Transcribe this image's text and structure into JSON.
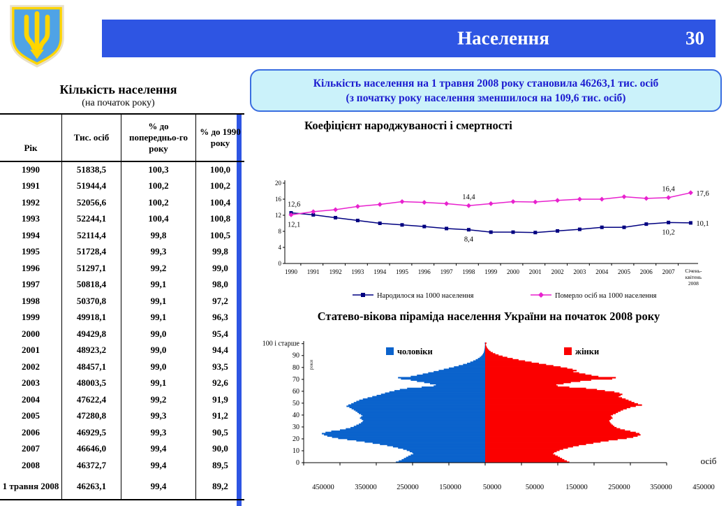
{
  "header": {
    "title": "Населення",
    "page_number": "30"
  },
  "info_box": {
    "line1": "Кількість населення на 1 травня 2008 року становила 46263,1 тис. осіб",
    "line2": "(з початку року населення зменшилося на 109,6 тис. осіб)"
  },
  "population_table": {
    "title": "Кількість населення",
    "subtitle": "(на початок року)",
    "columns": [
      "Рік",
      "Тис. осіб",
      "% до попередньо-го року",
      "% до 1990 року"
    ],
    "rows": [
      [
        "1990",
        "51838,5",
        "100,3",
        "100,0"
      ],
      [
        "1991",
        "51944,4",
        "100,2",
        "100,2"
      ],
      [
        "1992",
        "52056,6",
        "100,2",
        "100,4"
      ],
      [
        "1993",
        "52244,1",
        "100,4",
        "100,8"
      ],
      [
        "1994",
        "52114,4",
        "99,8",
        "100,5"
      ],
      [
        "1995",
        "51728,4",
        "99,3",
        "99,8"
      ],
      [
        "1996",
        "51297,1",
        "99,2",
        "99,0"
      ],
      [
        "1997",
        "50818,4",
        "99,1",
        "98,0"
      ],
      [
        "1998",
        "50370,8",
        "99,1",
        "97,2"
      ],
      [
        "1999",
        "49918,1",
        "99,1",
        "96,3"
      ],
      [
        "2000",
        "49429,8",
        "99,0",
        "95,4"
      ],
      [
        "2001",
        "48923,2",
        "99,0",
        "94,4"
      ],
      [
        "2002",
        "48457,1",
        "99,0",
        "93,5"
      ],
      [
        "2003",
        "48003,5",
        "99,1",
        "92,6"
      ],
      [
        "2004",
        "47622,4",
        "99,2",
        "91,9"
      ],
      [
        "2005",
        "47280,8",
        "99,3",
        "91,2"
      ],
      [
        "2006",
        "46929,5",
        "99,3",
        "90,5"
      ],
      [
        "2007",
        "46646,0",
        "99,4",
        "90,0"
      ],
      [
        "2008",
        "46372,7",
        "99,4",
        "89,5"
      ],
      [
        "1 травня 2008",
        "46263,1",
        "99,4",
        "89,2"
      ]
    ]
  },
  "chart_data": [
    {
      "type": "line",
      "title": "Коефіцієнт народжуваності і смертності",
      "categories": [
        "1990",
        "1991",
        "1992",
        "1993",
        "1994",
        "1995",
        "1996",
        "1997",
        "1998",
        "1999",
        "2000",
        "2001",
        "2002",
        "2003",
        "2004",
        "2005",
        "2006",
        "2007",
        "Січень-квітень 2008"
      ],
      "last_category_lines": [
        "Січень-",
        "квітень",
        "2008"
      ],
      "ylim": [
        0,
        20
      ],
      "yticks": [
        0,
        4,
        8,
        12,
        16,
        20
      ],
      "grid": false,
      "legend_position": "bottom",
      "series": [
        {
          "name": "Народилося на 1000 населення",
          "color": "#000080",
          "marker": "square",
          "values": [
            12.6,
            12.1,
            11.4,
            10.7,
            10.0,
            9.6,
            9.2,
            8.7,
            8.4,
            7.8,
            7.8,
            7.7,
            8.1,
            8.5,
            9.0,
            9.0,
            9.8,
            10.2,
            10.1
          ]
        },
        {
          "name": "Померло осіб на 1000 населення",
          "color": "#E821CE",
          "marker": "diamond",
          "values": [
            12.1,
            12.9,
            13.4,
            14.2,
            14.7,
            15.4,
            15.2,
            14.9,
            14.4,
            14.9,
            15.4,
            15.3,
            15.7,
            16.0,
            16.0,
            16.6,
            16.2,
            16.4,
            17.6
          ]
        }
      ],
      "annotations": [
        {
          "series": 0,
          "index": 0,
          "text": "12,6",
          "position": "above"
        },
        {
          "series": 1,
          "index": 0,
          "text": "12,1",
          "position": "below"
        },
        {
          "series": 1,
          "index": 8,
          "text": "14,4",
          "position": "above"
        },
        {
          "series": 0,
          "index": 8,
          "text": "8,4",
          "position": "below"
        },
        {
          "series": 1,
          "index": 17,
          "text": "16,4",
          "position": "above"
        },
        {
          "series": 0,
          "index": 17,
          "text": "10,2",
          "position": "below"
        },
        {
          "series": 1,
          "index": 18,
          "text": "17,6",
          "position": "right"
        },
        {
          "series": 0,
          "index": 18,
          "text": "10,1",
          "position": "right"
        }
      ]
    },
    {
      "type": "pyramid",
      "title": "Статево-вікова піраміда населення України на початок 2008 року",
      "unit_label": "осіб",
      "age_axis_label": "роки",
      "age_top_label": "100 і старше",
      "age_tick_step": 10,
      "x_tick_labels": [
        "450000",
        "350000",
        "250000",
        "150000",
        "50000",
        "50000",
        "150000",
        "250000",
        "350000",
        "450000"
      ],
      "xmax": 500000,
      "series": [
        {
          "name": "чоловіки",
          "color": "#0B63CC",
          "values": [
            246000,
            238000,
            230000,
            224000,
            218000,
            212000,
            205000,
            198000,
            201000,
            208000,
            216000,
            226000,
            240000,
            254000,
            270000,
            290000,
            310000,
            332000,
            355000,
            380000,
            405000,
            422000,
            435000,
            444000,
            450000,
            440000,
            424000,
            400000,
            384000,
            371000,
            362000,
            355000,
            348000,
            342000,
            338000,
            336000,
            340000,
            345000,
            342000,
            338000,
            342000,
            348000,
            352000,
            357000,
            362000,
            368000,
            374000,
            382000,
            377000,
            369000,
            362000,
            355000,
            347000,
            337000,
            324000,
            311000,
            299000,
            287000,
            276000,
            264000,
            250000,
            235000,
            215000,
            175000,
            142000,
            136000,
            152000,
            168000,
            188000,
            205000,
            232000,
            240000,
            205000,
            188000,
            172000,
            157000,
            142000,
            128000,
            114000,
            100000,
            86000,
            73000,
            61000,
            50000,
            41000,
            33000,
            26000,
            20000,
            15000,
            11000,
            8000,
            6000,
            4000,
            3000,
            2400,
            1700,
            1200,
            900,
            600,
            400,
            1100
          ]
        },
        {
          "name": "жінки",
          "color": "#FB0000",
          "values": [
            232000,
            225000,
            218000,
            212000,
            206000,
            200000,
            193000,
            187000,
            190000,
            197000,
            205000,
            215000,
            228000,
            242000,
            258000,
            278000,
            298000,
            318000,
            340000,
            365000,
            390000,
            408000,
            420000,
            428000,
            425000,
            415000,
            400000,
            385000,
            372000,
            362000,
            356000,
            352000,
            348000,
            345000,
            343000,
            342000,
            346000,
            351000,
            349000,
            346000,
            352000,
            360000,
            366000,
            373000,
            380000,
            390000,
            400000,
            415000,
            432000,
            421000,
            411000,
            403000,
            395000,
            387000,
            377000,
            368000,
            373000,
            378000,
            370000,
            356000,
            330000,
            308000,
            278000,
            232000,
            200000,
            196000,
            216000,
            236000,
            262000,
            292000,
            350000,
            360000,
            312000,
            293000,
            276000,
            259000,
            243000,
            252000,
            241000,
            226000,
            208000,
            188000,
            168000,
            148000,
            128000,
            110000,
            92000,
            76000,
            61000,
            48000,
            37000,
            28000,
            21000,
            15000,
            11000,
            8000,
            5500,
            3800,
            2600,
            1800,
            3600
          ]
        }
      ]
    }
  ],
  "colors": {
    "header_bar": "#2E55E3",
    "divider": "#2E55E3",
    "info_box_bg": "#CBF2FA",
    "info_box_border": "#3A6EE0",
    "info_box_text": "#1B1BD0",
    "births_line": "#000080",
    "deaths_line": "#E821CE",
    "men_bars": "#0B63CC",
    "women_bars": "#FB0000",
    "coat_shield": "#4FA3E6",
    "coat_trident": "#FFD500"
  }
}
